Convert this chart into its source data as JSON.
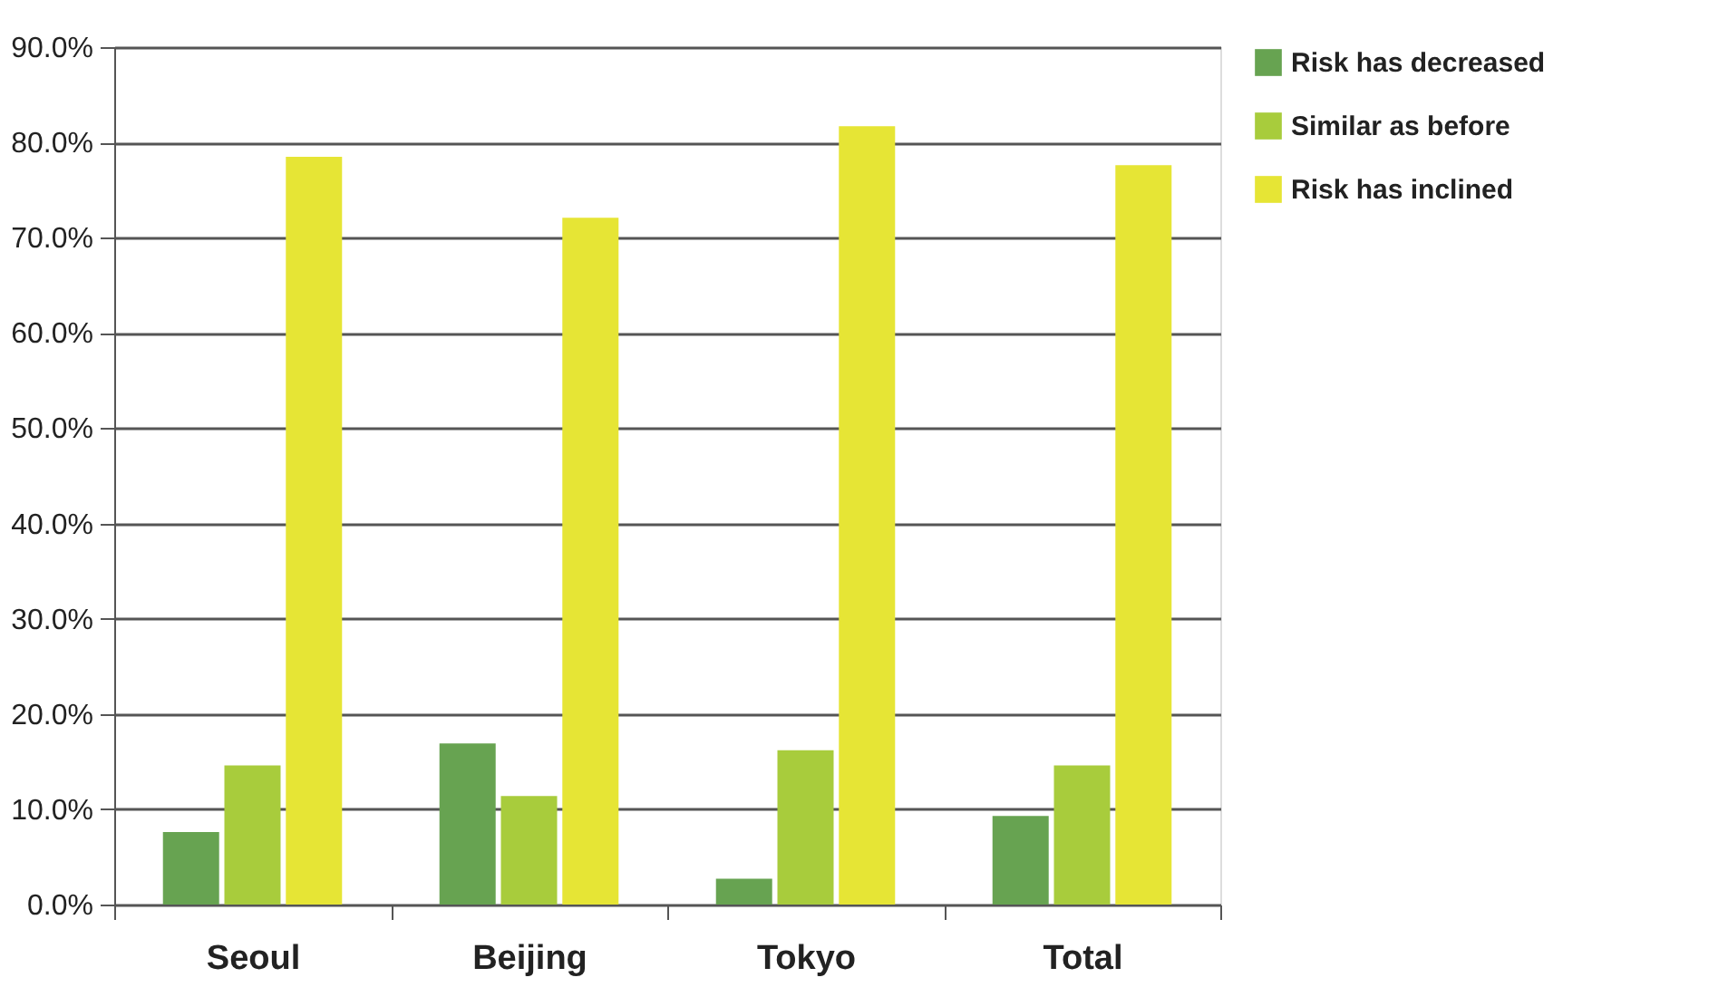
{
  "chart_data": {
    "type": "bar",
    "categories": [
      "Seoul",
      "Beijing",
      "Tokyo",
      "Total"
    ],
    "series": [
      {
        "name": "Risk has decreased",
        "color": "#67a351",
        "values": [
          7.6,
          16.9,
          2.7,
          9.3
        ]
      },
      {
        "name": "Similar as before",
        "color": "#a8cc3c",
        "values": [
          14.6,
          11.4,
          16.2,
          14.6
        ]
      },
      {
        "name": "Risk has inclined",
        "color": "#e6e535",
        "values": [
          78.5,
          72.1,
          81.7,
          77.6
        ]
      }
    ],
    "ylim": [
      0,
      90
    ],
    "yticks": [
      {
        "value": 0,
        "label": "0.0%"
      },
      {
        "value": 10,
        "label": "10.0%"
      },
      {
        "value": 20,
        "label": "20.0%"
      },
      {
        "value": 30,
        "label": "30.0%"
      },
      {
        "value": 40,
        "label": "40.0%"
      },
      {
        "value": 50,
        "label": "50.0%"
      },
      {
        "value": 60,
        "label": "60.0%"
      },
      {
        "value": 70,
        "label": "70.0%"
      },
      {
        "value": 80,
        "label": "80.0%"
      },
      {
        "value": 90,
        "label": "90.0%"
      }
    ],
    "grid": "y",
    "legend": "right"
  }
}
